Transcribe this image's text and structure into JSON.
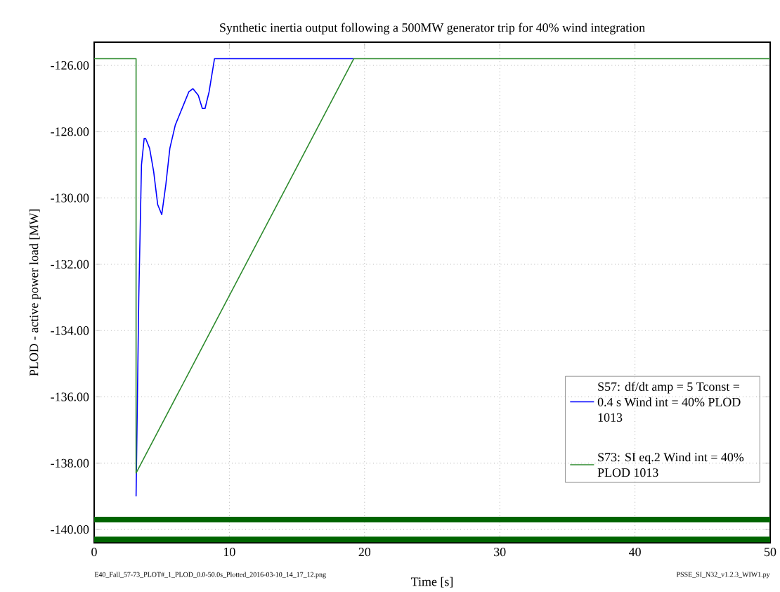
{
  "chart_data": {
    "type": "line",
    "title": "Synthetic inertia output following a 500MW generator trip for 40% wind integration",
    "xlabel": "Time [s]",
    "ylabel": "PLOD - active power load [MW]",
    "xlim": [
      0,
      50
    ],
    "xticks": [
      0,
      10,
      20,
      30,
      40,
      50
    ],
    "ylim": [
      -140.4,
      -125.3
    ],
    "yticks": [
      {
        "value": -140,
        "label": "-140.00"
      },
      {
        "value": -138,
        "label": "-138.00"
      },
      {
        "value": -136,
        "label": "-136.00"
      },
      {
        "value": -134,
        "label": "-134.00"
      },
      {
        "value": -132,
        "label": "-132.00"
      },
      {
        "value": -130,
        "label": "-130.00"
      },
      {
        "value": -128,
        "label": "-128.00"
      },
      {
        "value": -126,
        "label": "-126.00"
      }
    ],
    "grid": true,
    "legend": "bottom right",
    "series": [
      {
        "name": "S57: df/dt amp = 5 Tconst = 0.4 s Wind int = 40% PLOD 1013",
        "color": "#0000ff",
        "x": [
          3.1,
          3.3,
          3.5,
          3.7,
          3.8,
          4.1,
          4.4,
          4.7,
          5.0,
          5.3,
          5.6,
          6.0,
          6.3,
          6.7,
          7.0,
          7.3,
          7.7,
          8.0,
          8.2,
          8.5,
          8.9,
          19.2
        ],
        "values": [
          -139.0,
          -133.0,
          -129.0,
          -128.2,
          -128.2,
          -128.5,
          -129.2,
          -130.2,
          -130.5,
          -129.6,
          -128.5,
          -127.8,
          -127.5,
          -127.1,
          -126.8,
          -126.7,
          -126.9,
          -127.3,
          -127.3,
          -126.8,
          -125.8,
          -125.8
        ]
      },
      {
        "name": "S73: SI eq.2 Wind int = 40% PLOD 1013",
        "color": "#2e8b2e",
        "x": [
          0,
          3.1,
          3.1,
          19.2,
          50
        ],
        "values": [
          -125.8,
          -125.8,
          -138.3,
          -125.8,
          -125.8
        ]
      },
      {
        "color": "#006400",
        "x": [
          0,
          50
        ],
        "values": [
          -139.7,
          -139.7
        ]
      },
      {
        "color": "#006400",
        "x": [
          0,
          50
        ],
        "values": [
          -140.3,
          -140.3
        ]
      }
    ],
    "annotations": [
      "E40_Fall_57-73_PLOT#_1_PLOD_0.0-50.0s_Plotted_2016-03-10_14_17_12.png",
      "PSSE_SI_N32_v1.2.3_WIW1.py"
    ]
  }
}
